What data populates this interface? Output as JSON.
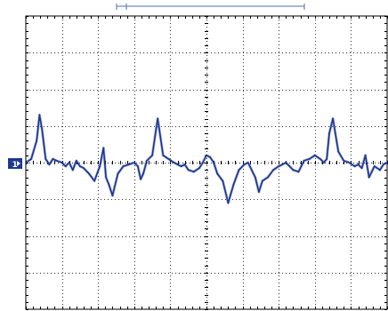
{
  "screen": {
    "background": "#ffffff",
    "grid_color": "#000000",
    "trace_color": "#1f3a93",
    "bar_color": "#5a6fb0"
  },
  "ground_marker": {
    "label": "1",
    "icon": "ground-level-marker-icon"
  },
  "trigger_marker": {
    "icon": "trigger-position-marker-icon"
  },
  "chart_data": {
    "type": "line",
    "grid": {
      "x_divisions": 10,
      "y_divisions": 8,
      "minor_ticks": 5,
      "dotted": true
    },
    "xlim": [
      0,
      10
    ],
    "ylim": [
      -4,
      4
    ],
    "series": [
      {
        "color": "#1f3a93",
        "x": [
          0.0,
          0.15,
          0.3,
          0.38,
          0.45,
          0.55,
          0.65,
          0.75,
          0.85,
          1.0,
          1.1,
          1.2,
          1.3,
          1.4,
          1.5,
          1.6,
          1.75,
          1.9,
          2.05,
          2.15,
          2.22,
          2.3,
          2.4,
          2.55,
          2.7,
          2.85,
          3.0,
          3.1,
          3.18,
          3.25,
          3.35,
          3.5,
          3.65,
          3.8,
          3.95,
          4.1,
          4.2,
          4.3,
          4.4,
          4.5,
          4.65,
          4.8,
          4.9,
          5.0,
          5.1,
          5.2,
          5.3,
          5.45,
          5.6,
          5.75,
          5.9,
          6.05,
          6.15,
          6.25,
          6.35,
          6.45,
          6.55,
          6.7,
          6.85,
          7.0,
          7.1,
          7.2,
          7.3,
          7.4,
          7.55,
          7.7,
          7.85,
          8.0,
          8.15,
          8.25,
          8.33,
          8.4,
          8.5,
          8.65,
          8.8,
          8.95,
          9.1,
          9.2,
          9.3,
          9.4,
          9.5,
          9.65,
          9.8,
          9.9,
          10.0
        ],
        "values": [
          0.0,
          0.1,
          0.6,
          1.3,
          0.9,
          0.1,
          -0.05,
          0.1,
          0.05,
          0.0,
          -0.1,
          0.0,
          -0.2,
          0.05,
          -0.1,
          -0.15,
          -0.3,
          -0.5,
          -0.1,
          0.4,
          -0.4,
          -0.6,
          -0.9,
          -0.3,
          -0.1,
          -0.05,
          0.0,
          -0.1,
          -0.45,
          -0.3,
          0.05,
          0.2,
          1.2,
          0.2,
          0.1,
          0.0,
          -0.05,
          -0.1,
          -0.05,
          -0.2,
          -0.25,
          -0.15,
          0.0,
          0.2,
          0.15,
          0.0,
          -0.3,
          -0.5,
          -1.1,
          -0.6,
          -0.2,
          -0.05,
          0.0,
          -0.2,
          -0.4,
          -0.8,
          -0.5,
          -0.4,
          -0.2,
          -0.1,
          -0.05,
          0.0,
          -0.1,
          -0.2,
          -0.25,
          0.05,
          0.1,
          0.2,
          0.1,
          0.0,
          0.1,
          0.8,
          1.2,
          0.3,
          0.05,
          0.0,
          -0.1,
          -0.05,
          -0.15,
          0.2,
          -0.4,
          -0.1,
          -0.2,
          -0.05,
          0.0
        ]
      }
    ]
  }
}
